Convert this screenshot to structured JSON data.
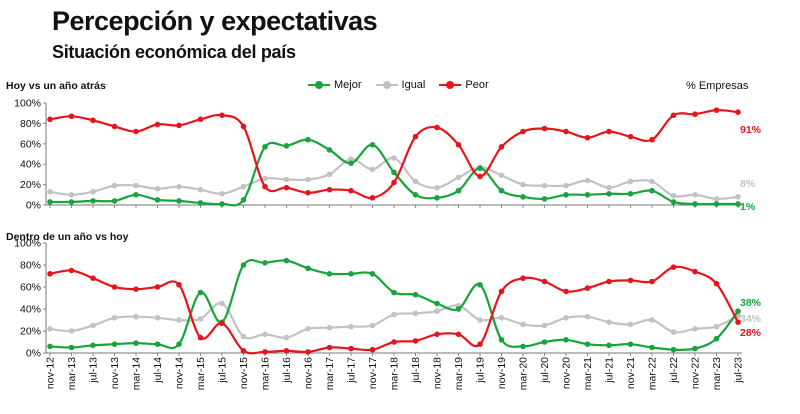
{
  "header": {
    "title": "Percepción y expectativas",
    "subtitle": "Situación económica del país",
    "unit": "% Empresas"
  },
  "colors": {
    "mejor": "#19a33c",
    "igual": "#c2c2c2",
    "peor": "#e8141c"
  },
  "chart_data": [
    {
      "type": "line",
      "title": "Hoy vs un año atrás",
      "ylim": [
        0,
        100
      ],
      "yticks": [
        "0%",
        "20%",
        "40%",
        "60%",
        "80%",
        "100%"
      ],
      "categories": [
        "nov-12",
        "mar-13",
        "jul-13",
        "nov-13",
        "mar-14",
        "jul-14",
        "nov-14",
        "mar-15",
        "jul-15",
        "nov-15",
        "mar-16",
        "jul-16",
        "nov-16",
        "mar-17",
        "jul-17",
        "nov-17",
        "mar-18",
        "jul-18",
        "nov-18",
        "mar-19",
        "jul-19",
        "nov-19",
        "mar-20",
        "jul-20",
        "nov-20",
        "mar-21",
        "jul-21",
        "nov-21",
        "mar-22",
        "jul-22",
        "nov-22",
        "mar-23",
        "jul-23"
      ],
      "legend_position": "top",
      "series": [
        {
          "name": "Mejor",
          "values": [
            3,
            3,
            4,
            4,
            10,
            5,
            4,
            2,
            1,
            5,
            57,
            58,
            64,
            54,
            41,
            59,
            32,
            10,
            7,
            14,
            36,
            14,
            8,
            6,
            10,
            10,
            11,
            11,
            14,
            3,
            1,
            1,
            1
          ]
        },
        {
          "name": "Igual",
          "values": [
            13,
            10,
            13,
            19,
            19,
            16,
            18,
            15,
            11,
            18,
            26,
            25,
            25,
            30,
            45,
            35,
            46,
            23,
            17,
            27,
            37,
            29,
            20,
            19,
            19,
            24,
            17,
            23,
            23,
            9,
            10,
            6,
            8
          ]
        },
        {
          "name": "Peor",
          "values": [
            84,
            87,
            83,
            77,
            72,
            79,
            78,
            84,
            88,
            77,
            18,
            17,
            12,
            15,
            14,
            7,
            22,
            67,
            76,
            59,
            28,
            57,
            72,
            75,
            72,
            66,
            72,
            67,
            64,
            88,
            89,
            93,
            91
          ]
        }
      ],
      "end_labels": [
        {
          "series": "Igual",
          "text": "8%"
        },
        {
          "series": "Mejor",
          "text": "1%"
        },
        {
          "series": "Peor",
          "text": "91%"
        }
      ]
    },
    {
      "type": "line",
      "title": "Dentro de un año vs hoy",
      "ylim": [
        0,
        100
      ],
      "yticks": [
        "0%",
        "20%",
        "40%",
        "60%",
        "80%",
        "100%"
      ],
      "categories": [
        "nov-12",
        "mar-13",
        "jul-13",
        "nov-13",
        "mar-14",
        "jul-14",
        "nov-14",
        "mar-15",
        "jul-15",
        "nov-15",
        "mar-16",
        "jul-16",
        "nov-16",
        "mar-17",
        "jul-17",
        "nov-17",
        "mar-18",
        "jul-18",
        "nov-18",
        "mar-19",
        "jul-19",
        "nov-19",
        "mar-20",
        "jul-20",
        "nov-20",
        "mar-21",
        "jul-21",
        "nov-21",
        "mar-22",
        "jul-22",
        "nov-22",
        "mar-23",
        "jul-23"
      ],
      "series": [
        {
          "name": "Mejor",
          "values": [
            6,
            5,
            7,
            8,
            9,
            8,
            8,
            55,
            28,
            80,
            82,
            84,
            77,
            72,
            72,
            72,
            55,
            53,
            45,
            40,
            62,
            12,
            6,
            10,
            12,
            8,
            7,
            8,
            5,
            3,
            4,
            13,
            38
          ]
        },
        {
          "name": "Igual",
          "values": [
            22,
            20,
            25,
            32,
            33,
            32,
            30,
            31,
            45,
            15,
            17,
            14,
            22,
            23,
            24,
            25,
            35,
            36,
            38,
            43,
            30,
            32,
            26,
            25,
            32,
            33,
            28,
            26,
            30,
            19,
            22,
            24,
            34
          ]
        },
        {
          "name": "Peor",
          "values": [
            72,
            75,
            68,
            60,
            58,
            60,
            62,
            14,
            27,
            2,
            1,
            2,
            1,
            5,
            4,
            3,
            10,
            11,
            17,
            17,
            8,
            56,
            68,
            65,
            56,
            59,
            65,
            66,
            65,
            78,
            74,
            63,
            28
          ]
        }
      ],
      "end_labels": [
        {
          "series": "Mejor",
          "text": "38%"
        },
        {
          "series": "Igual",
          "text": "34%"
        },
        {
          "series": "Peor",
          "text": "28%"
        }
      ]
    }
  ]
}
